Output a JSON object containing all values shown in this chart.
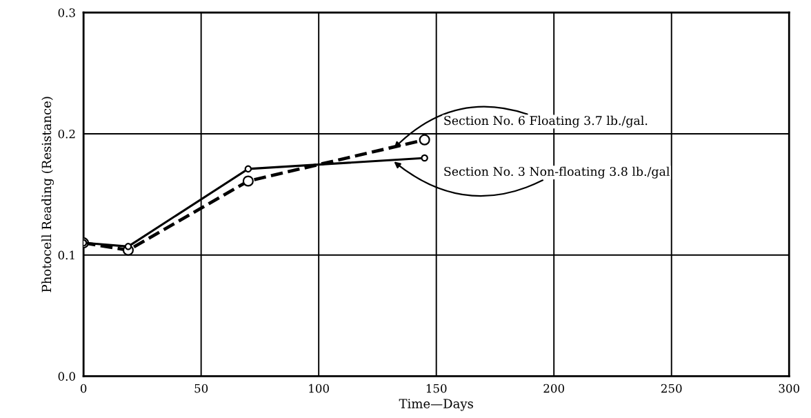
{
  "chart_data": {
    "type": "line",
    "xlabel": "Time—Days",
    "ylabel": "Photocell Reading (Resistance)",
    "xlim": [
      0,
      300
    ],
    "xticks": [
      0,
      50,
      100,
      150,
      200,
      250,
      300
    ],
    "ylim": [
      0,
      0.3
    ],
    "yticks": [
      {
        "value": 0,
        "label": "0.0"
      },
      0.1,
      0.2,
      0.3
    ],
    "grid": true,
    "marker": "circle",
    "series": [
      {
        "color": "#000000",
        "line_style": "dashed",
        "x": [
          0,
          19,
          70,
          145
        ],
        "values": [
          0.11,
          0.104,
          0.161,
          0.195
        ]
      },
      {
        "color": "#000000",
        "line_style": "solid",
        "x": [
          0,
          19,
          70,
          145
        ],
        "values": [
          0.11,
          0.107,
          0.171,
          0.18
        ]
      }
    ],
    "annotations": [
      {
        "text": "Section No. 6 Floating 3.7 lb./gal.",
        "x": 132,
        "y": 0.188
      },
      {
        "text": "Section No. 3 Non-floating 3.8 lb./gal",
        "x": 132,
        "y": 0.177
      }
    ]
  }
}
